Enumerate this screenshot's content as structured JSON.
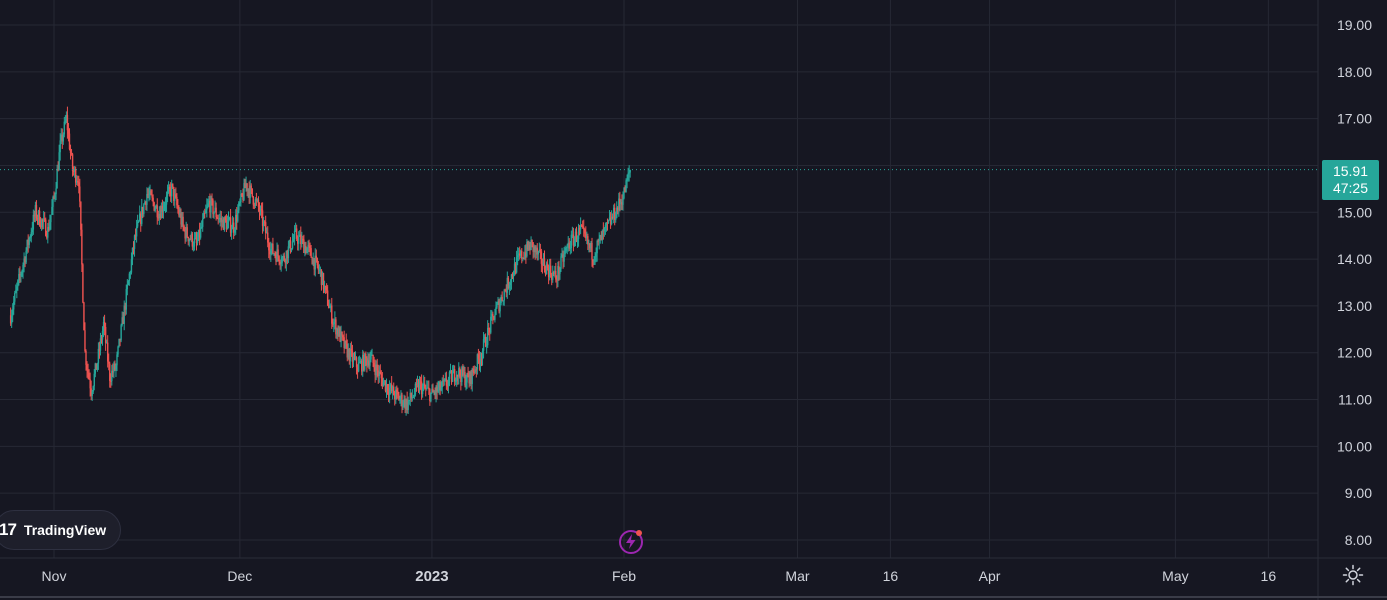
{
  "chart_data": {
    "type": "candlestick",
    "y_axis": {
      "min": 8,
      "max": 19,
      "ticks": [
        "8.00",
        "9.00",
        "10.00",
        "11.00",
        "12.00",
        "13.00",
        "14.00",
        "15.00",
        "16.00",
        "17.00",
        "18.00",
        "19.00"
      ]
    },
    "x_axis": {
      "labels": [
        {
          "text": "Nov",
          "date": "2022-11-01",
          "bold": false
        },
        {
          "text": "Dec",
          "date": "2022-12-01",
          "bold": false
        },
        {
          "text": "2023",
          "date": "2023-01-01",
          "bold": true
        },
        {
          "text": "Feb",
          "date": "2023-02-01",
          "bold": false
        },
        {
          "text": "Mar",
          "date": "2023-03-01",
          "bold": false
        },
        {
          "text": "16",
          "date": "2023-03-16",
          "bold": false
        },
        {
          "text": "Apr",
          "date": "2023-04-01",
          "bold": false
        },
        {
          "text": "May",
          "date": "2023-05-01",
          "bold": false
        },
        {
          "text": "16",
          "date": "2023-05-16",
          "bold": false
        }
      ],
      "range": [
        "2022-10-25",
        "2023-05-25"
      ]
    },
    "grid": true,
    "last_price": "15.91",
    "countdown": "47:25",
    "series_path": [
      [
        "2022-10-25",
        12.8
      ],
      [
        "2022-10-27",
        13.9
      ],
      [
        "2022-10-29",
        15.0
      ],
      [
        "2022-10-31",
        14.6
      ],
      [
        "2022-11-01",
        15.3
      ],
      [
        "2022-11-02",
        16.4
      ],
      [
        "2022-11-03",
        17.0
      ],
      [
        "2022-11-04",
        15.9
      ],
      [
        "2022-11-05",
        15.7
      ],
      [
        "2022-11-06",
        12.0
      ],
      [
        "2022-11-07",
        11.2
      ],
      [
        "2022-11-08",
        11.8
      ],
      [
        "2022-11-09",
        12.6
      ],
      [
        "2022-11-10",
        11.5
      ],
      [
        "2022-11-11",
        11.7
      ],
      [
        "2022-11-12",
        12.6
      ],
      [
        "2022-11-14",
        14.4
      ],
      [
        "2022-11-16",
        15.4
      ],
      [
        "2022-11-18",
        15.0
      ],
      [
        "2022-11-20",
        15.5
      ],
      [
        "2022-11-22",
        14.6
      ],
      [
        "2022-11-24",
        14.3
      ],
      [
        "2022-11-26",
        15.2
      ],
      [
        "2022-11-28",
        14.8
      ],
      [
        "2022-11-30",
        14.7
      ],
      [
        "2022-12-02",
        15.6
      ],
      [
        "2022-12-04",
        15.1
      ],
      [
        "2022-12-06",
        14.2
      ],
      [
        "2022-12-08",
        14.0
      ],
      [
        "2022-12-10",
        14.5
      ],
      [
        "2022-12-12",
        14.2
      ],
      [
        "2022-12-14",
        13.7
      ],
      [
        "2022-12-16",
        12.7
      ],
      [
        "2022-12-18",
        12.1
      ],
      [
        "2022-12-20",
        11.7
      ],
      [
        "2022-12-22",
        11.9
      ],
      [
        "2022-12-24",
        11.4
      ],
      [
        "2022-12-26",
        11.1
      ],
      [
        "2022-12-28",
        10.9
      ],
      [
        "2022-12-30",
        11.3
      ],
      [
        "2023-01-01",
        11.1
      ],
      [
        "2023-01-03",
        11.3
      ],
      [
        "2023-01-05",
        11.6
      ],
      [
        "2023-01-07",
        11.4
      ],
      [
        "2023-01-09",
        12.0
      ],
      [
        "2023-01-11",
        12.8
      ],
      [
        "2023-01-13",
        13.4
      ],
      [
        "2023-01-15",
        14.0
      ],
      [
        "2023-01-17",
        14.3
      ],
      [
        "2023-01-19",
        13.9
      ],
      [
        "2023-01-21",
        13.6
      ],
      [
        "2023-01-23",
        14.3
      ],
      [
        "2023-01-25",
        14.6
      ],
      [
        "2023-01-27",
        14.1
      ],
      [
        "2023-01-29",
        14.6
      ],
      [
        "2023-01-31",
        15.1
      ],
      [
        "2023-02-01",
        15.4
      ],
      [
        "2023-02-02",
        15.91
      ]
    ]
  },
  "branding": {
    "logo_mark": "17",
    "logo_text": "TradingView"
  },
  "icons": {
    "bolt": "lightning-bolt-icon",
    "settings": "gear-icon"
  },
  "colors": {
    "background": "#161722",
    "grid": "#262834",
    "up": "#26a69a",
    "down": "#ef5350",
    "text": "#d1d4dc",
    "accent": "#9c27b0"
  }
}
